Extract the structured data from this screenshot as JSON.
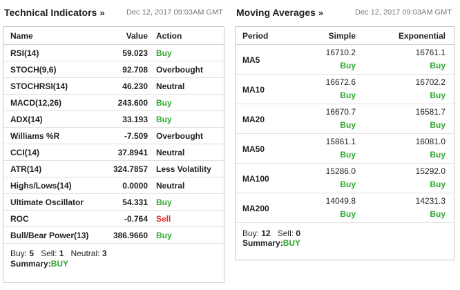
{
  "technical": {
    "title": "Technical Indicators",
    "arrow": "»",
    "date": "Dec 12, 2017 09:03AM GMT",
    "headers": {
      "name": "Name",
      "value": "Value",
      "action": "Action"
    },
    "rows": [
      {
        "name": "RSI(14)",
        "value": "59.023",
        "action": "Buy",
        "type": "buy"
      },
      {
        "name": "STOCH(9,6)",
        "value": "92.708",
        "action": "Overbought",
        "type": "neutral"
      },
      {
        "name": "STOCHRSI(14)",
        "value": "46.230",
        "action": "Neutral",
        "type": "neutral"
      },
      {
        "name": "MACD(12,26)",
        "value": "243.600",
        "action": "Buy",
        "type": "buy"
      },
      {
        "name": "ADX(14)",
        "value": "33.193",
        "action": "Buy",
        "type": "buy"
      },
      {
        "name": "Williams %R",
        "value": "-7.509",
        "action": "Overbought",
        "type": "neutral"
      },
      {
        "name": "CCI(14)",
        "value": "37.8941",
        "action": "Neutral",
        "type": "neutral"
      },
      {
        "name": "ATR(14)",
        "value": "324.7857",
        "action": "Less Volatility",
        "type": "neutral"
      },
      {
        "name": "Highs/Lows(14)",
        "value": "0.0000",
        "action": "Neutral",
        "type": "neutral"
      },
      {
        "name": "Ultimate Oscillator",
        "value": "54.331",
        "action": "Buy",
        "type": "buy"
      },
      {
        "name": "ROC",
        "value": "-0.764",
        "action": "Sell",
        "type": "sell"
      },
      {
        "name": "Bull/Bear Power(13)",
        "value": "386.9660",
        "action": "Buy",
        "type": "buy"
      }
    ],
    "footer": {
      "buy_label": "Buy:",
      "buy_count": "5",
      "sell_label": "Sell:",
      "sell_count": "1",
      "neutral_label": "Neutral:",
      "neutral_count": "3",
      "summary_label": "Summary:",
      "summary_value": "BUY"
    }
  },
  "moving": {
    "title": "Moving Averages",
    "arrow": "»",
    "date": "Dec 12, 2017 09:03AM GMT",
    "headers": {
      "period": "Period",
      "simple": "Simple",
      "exponential": "Exponential"
    },
    "rows": [
      {
        "period": "MA5",
        "simple": "16710.2",
        "simple_action": "Buy",
        "exp": "16761.1",
        "exp_action": "Buy"
      },
      {
        "period": "MA10",
        "simple": "16672.6",
        "simple_action": "Buy",
        "exp": "16702.2",
        "exp_action": "Buy"
      },
      {
        "period": "MA20",
        "simple": "16670.7",
        "simple_action": "Buy",
        "exp": "16581.7",
        "exp_action": "Buy"
      },
      {
        "period": "MA50",
        "simple": "15861.1",
        "simple_action": "Buy",
        "exp": "16081.0",
        "exp_action": "Buy"
      },
      {
        "period": "MA100",
        "simple": "15286.0",
        "simple_action": "Buy",
        "exp": "15292.0",
        "exp_action": "Buy"
      },
      {
        "period": "MA200",
        "simple": "14049.8",
        "simple_action": "Buy",
        "exp": "14231.3",
        "exp_action": "Buy"
      }
    ],
    "footer": {
      "buy_label": "Buy:",
      "buy_count": "12",
      "sell_label": "Sell:",
      "sell_count": "0",
      "summary_label": "Summary:",
      "summary_value": "BUY"
    }
  },
  "colors": {
    "buy": "#2fa82f",
    "sell": "#e22b2b",
    "text": "#222222",
    "muted": "#777777",
    "border": "#c7c7c7"
  }
}
